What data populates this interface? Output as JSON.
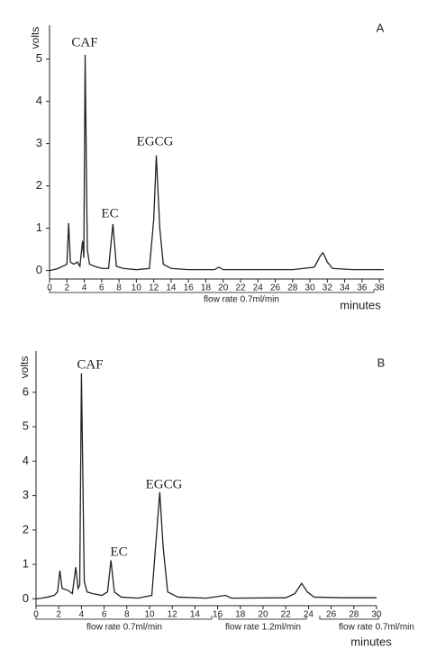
{
  "chart_data": [
    {
      "type": "line",
      "panel_label": "A",
      "ylabel": "volts",
      "xlabel": "minutes",
      "annotations": [
        "CAF",
        "EC",
        "EGCG"
      ],
      "flow_rates": [
        "flow rate 0.7ml/min"
      ],
      "xlim": [
        0,
        38.5
      ],
      "ylim": [
        -0.2,
        5.8
      ],
      "xticks": [
        0,
        2,
        4,
        6,
        8,
        10,
        12,
        14,
        16,
        18,
        20,
        22,
        24,
        26,
        28,
        30,
        32,
        34,
        36,
        38
      ],
      "yticks": [
        0,
        1,
        2,
        3,
        4,
        5
      ],
      "color": "#222222",
      "x": [
        0,
        0.5,
        1,
        1.5,
        2.0,
        2.2,
        2.4,
        2.8,
        3.2,
        3.5,
        3.8,
        3.95,
        4.1,
        4.35,
        4.6,
        5.2,
        6,
        6.8,
        7.3,
        7.7,
        8.5,
        10,
        11.5,
        12.0,
        12.3,
        12.7,
        13.1,
        14,
        16,
        19.0,
        19.5,
        20,
        24,
        28,
        30.5,
        31.2,
        31.5,
        32,
        32.6,
        35,
        38.5
      ],
      "values": [
        0,
        0.02,
        0.05,
        0.1,
        0.15,
        1.12,
        0.2,
        0.15,
        0.2,
        0.1,
        0.7,
        0.3,
        5.1,
        0.5,
        0.15,
        0.1,
        0.05,
        0.05,
        1.1,
        0.1,
        0.05,
        0.02,
        0.05,
        1.2,
        2.72,
        1.0,
        0.15,
        0.05,
        0.02,
        0.02,
        0.08,
        0.02,
        0.02,
        0.02,
        0.08,
        0.35,
        0.42,
        0.2,
        0.05,
        0.02,
        0.02
      ]
    },
    {
      "type": "line",
      "panel_label": "B",
      "ylabel": "volts",
      "xlabel": "minutes",
      "annotations": [
        "CAF",
        "EC",
        "EGCG"
      ],
      "flow_rates": [
        "flow rate 0.7ml/min",
        "flow rate 1.2ml/min",
        "flow rate 0.7ml/min"
      ],
      "xlim": [
        0,
        30
      ],
      "ylim": [
        -0.2,
        7.2
      ],
      "xticks": [
        0,
        2,
        4,
        6,
        8,
        10,
        12,
        14,
        16,
        18,
        20,
        22,
        24,
        26,
        28,
        30
      ],
      "yticks": [
        0,
        1,
        2,
        3,
        4,
        5,
        6
      ],
      "color": "#222222",
      "x": [
        0,
        0.5,
        1,
        1.6,
        1.9,
        2.1,
        2.3,
        2.8,
        3.2,
        3.5,
        3.7,
        3.85,
        4.0,
        4.25,
        4.5,
        5,
        5.8,
        6.3,
        6.6,
        6.9,
        7.5,
        9,
        10.2,
        10.6,
        10.9,
        11.2,
        11.6,
        12.5,
        15,
        16.7,
        17.2,
        22,
        22.8,
        23.4,
        23.9,
        24.5,
        27,
        30
      ],
      "values": [
        0,
        0.02,
        0.05,
        0.1,
        0.2,
        0.82,
        0.3,
        0.25,
        0.15,
        0.92,
        0.3,
        0.4,
        6.55,
        0.5,
        0.2,
        0.15,
        0.1,
        0.2,
        1.12,
        0.2,
        0.05,
        0.02,
        0.1,
        1.8,
        3.1,
        1.5,
        0.2,
        0.05,
        0.02,
        0.1,
        0.02,
        0.03,
        0.15,
        0.45,
        0.2,
        0.05,
        0.03,
        0.03
      ]
    }
  ]
}
